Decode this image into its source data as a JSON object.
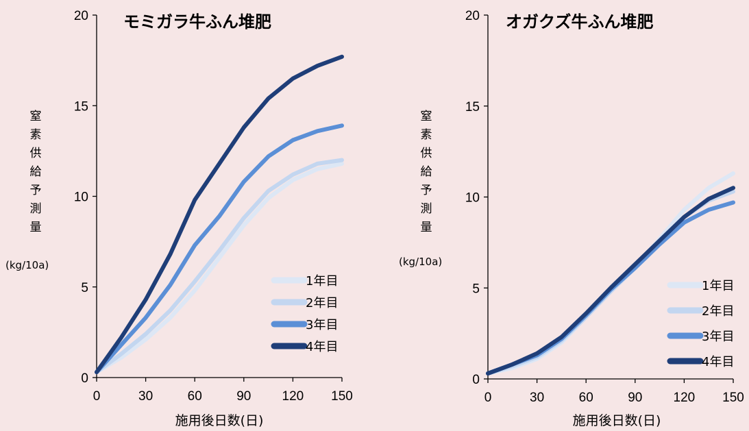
{
  "chart_data": [
    {
      "type": "line",
      "title": "モミガラ牛ふん堆肥",
      "xlabel": "施用後日数(日)",
      "ylabel": "窒素供給予測量",
      "yunit": "(kg/10a)",
      "xlim": [
        0,
        150
      ],
      "ylim": [
        0,
        20
      ],
      "xticks": [
        0,
        30,
        60,
        90,
        120,
        150
      ],
      "yticks": [
        0,
        5,
        10,
        15,
        20
      ],
      "legend_position": "bottom-right",
      "series": [
        {
          "name": "1年目",
          "color": "#dde7f5",
          "x": [
            0,
            15,
            30,
            45,
            60,
            75,
            90,
            105,
            120,
            135,
            150
          ],
          "y": [
            0.3,
            1.1,
            2.1,
            3.3,
            4.8,
            6.6,
            8.4,
            9.9,
            10.9,
            11.5,
            11.8
          ]
        },
        {
          "name": "2年目",
          "color": "#c3d6f0",
          "x": [
            0,
            15,
            30,
            45,
            60,
            75,
            90,
            105,
            120,
            135,
            150
          ],
          "y": [
            0.3,
            1.3,
            2.4,
            3.7,
            5.3,
            7.0,
            8.8,
            10.3,
            11.2,
            11.8,
            12.0
          ]
        },
        {
          "name": "3年目",
          "color": "#5b8fd6",
          "x": [
            0,
            15,
            30,
            45,
            60,
            75,
            90,
            105,
            120,
            135,
            150
          ],
          "y": [
            0.3,
            1.8,
            3.3,
            5.1,
            7.3,
            8.9,
            10.8,
            12.2,
            13.1,
            13.6,
            13.9
          ]
        },
        {
          "name": "4年目",
          "color": "#1f3e78",
          "x": [
            0,
            15,
            30,
            45,
            60,
            75,
            90,
            105,
            120,
            135,
            150
          ],
          "y": [
            0.3,
            2.2,
            4.3,
            6.8,
            9.8,
            11.8,
            13.8,
            15.4,
            16.5,
            17.2,
            17.7
          ]
        }
      ]
    },
    {
      "type": "line",
      "title": "オガクズ牛ふん堆肥",
      "xlabel": "施用後日数(日)",
      "ylabel": "窒素供給予測量",
      "yunit": "(kg/10a)",
      "xlim": [
        0,
        150
      ],
      "ylim": [
        0,
        20
      ],
      "xticks": [
        0,
        30,
        60,
        90,
        120,
        150
      ],
      "yticks": [
        0,
        5,
        10,
        15,
        20
      ],
      "legend_position": "bottom-right",
      "series": [
        {
          "name": "1年目",
          "color": "#dde7f5",
          "x": [
            0,
            15,
            30,
            45,
            60,
            75,
            90,
            105,
            120,
            135,
            150
          ],
          "y": [
            0.3,
            0.6,
            1.1,
            2.0,
            3.4,
            4.8,
            6.2,
            7.7,
            9.3,
            10.5,
            11.3
          ]
        },
        {
          "name": "2年目",
          "color": "#c3d6f0",
          "x": [
            0,
            15,
            30,
            45,
            60,
            75,
            90,
            105,
            120,
            135,
            150
          ],
          "y": [
            0.3,
            0.7,
            1.2,
            2.1,
            3.4,
            4.8,
            6.1,
            7.5,
            8.9,
            9.8,
            10.3
          ]
        },
        {
          "name": "3年目",
          "color": "#5b8fd6",
          "x": [
            0,
            15,
            30,
            45,
            60,
            75,
            90,
            105,
            120,
            135,
            150
          ],
          "y": [
            0.3,
            0.8,
            1.3,
            2.2,
            3.5,
            4.9,
            6.1,
            7.4,
            8.6,
            9.3,
            9.7
          ]
        },
        {
          "name": "4年目",
          "color": "#1f3e78",
          "x": [
            0,
            15,
            30,
            45,
            60,
            75,
            90,
            105,
            120,
            135,
            150
          ],
          "y": [
            0.3,
            0.8,
            1.4,
            2.3,
            3.6,
            5.0,
            6.3,
            7.6,
            8.9,
            9.9,
            10.5
          ]
        }
      ]
    }
  ]
}
